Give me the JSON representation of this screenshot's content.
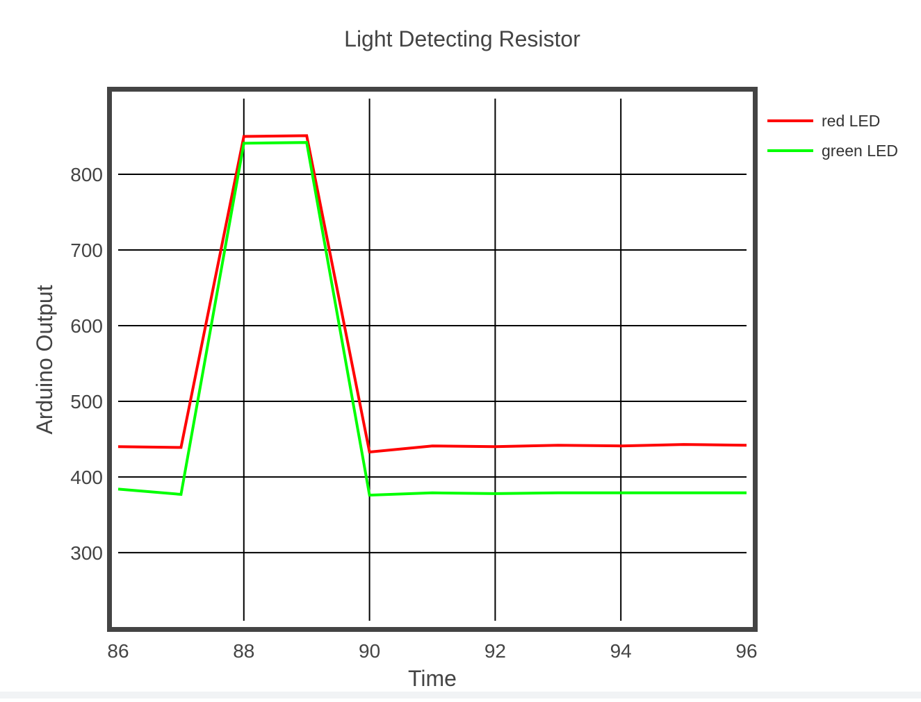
{
  "chart_data": {
    "type": "line",
    "title": "Light Detecting Resistor",
    "xlabel": "Time",
    "ylabel": "Arduino Output",
    "xlim": [
      86,
      96
    ],
    "ylim": [
      210,
      900
    ],
    "x_ticks": [
      86,
      88,
      90,
      92,
      94,
      96
    ],
    "y_ticks": [
      300,
      400,
      500,
      600,
      700,
      800
    ],
    "grid": true,
    "legend_position": "top-right",
    "series": [
      {
        "name": "red LED",
        "color": "#ff0000",
        "x": [
          86,
          87,
          88,
          89,
          90,
          91,
          92,
          93,
          94,
          95,
          96
        ],
        "y": [
          440,
          439,
          850,
          851,
          433,
          441,
          440,
          442,
          441,
          443,
          442
        ]
      },
      {
        "name": "green LED",
        "color": "#00ff00",
        "x": [
          86,
          87,
          88,
          89,
          90,
          91,
          92,
          93,
          94,
          95,
          96
        ],
        "y": [
          384,
          377,
          841,
          842,
          376,
          379,
          378,
          379,
          379,
          379,
          379
        ]
      }
    ]
  }
}
